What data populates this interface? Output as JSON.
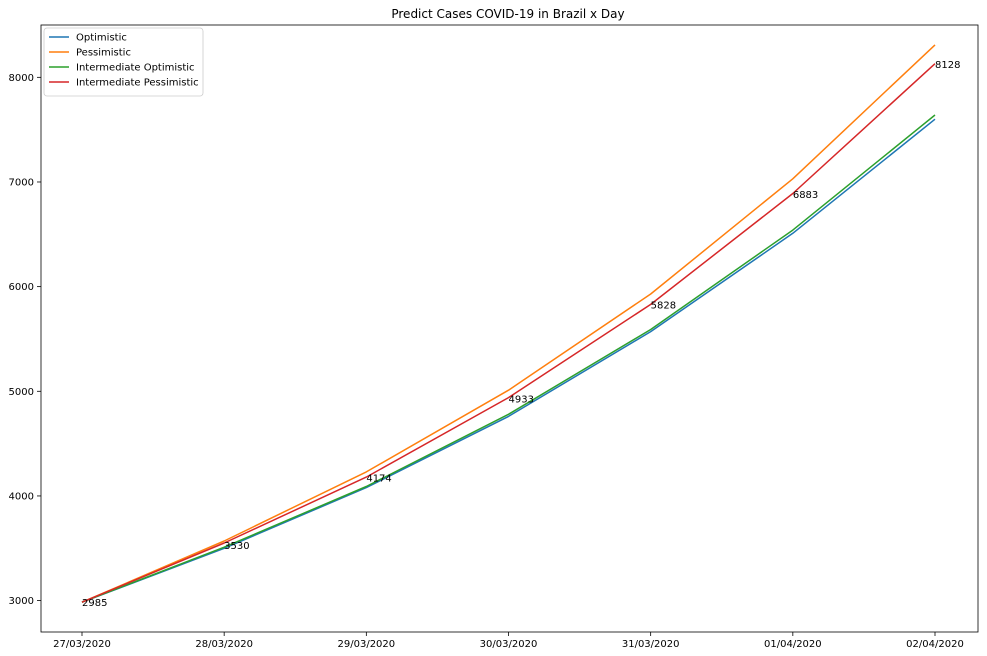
{
  "chart_data": {
    "type": "line",
    "title": "Predict Cases COVID-19 in Brazil x Day",
    "xlabel": "",
    "ylabel": "",
    "categories": [
      "27/03/2020",
      "28/03/2020",
      "29/03/2020",
      "30/03/2020",
      "31/03/2020",
      "01/04/2020",
      "02/04/2020"
    ],
    "ylim": [
      2700,
      8500
    ],
    "yticks": [
      3000,
      4000,
      5000,
      6000,
      7000,
      8000
    ],
    "grid": false,
    "legend_position": "top-left",
    "series": [
      {
        "name": "Optimistic",
        "color": "#1f77b4",
        "values": [
          2985,
          3500,
          4080,
          4760,
          5570,
          6510,
          7600
        ]
      },
      {
        "name": "Pessimistic",
        "color": "#ff7f0e",
        "values": [
          2985,
          3570,
          4230,
          5010,
          5930,
          7030,
          8310
        ]
      },
      {
        "name": "Intermediate Optimistic",
        "color": "#2ca02c",
        "values": [
          2985,
          3510,
          4090,
          4780,
          5590,
          6540,
          7640
        ]
      },
      {
        "name": "Intermediate Pessimistic",
        "color": "#d62728",
        "values": [
          2985,
          3550,
          4180,
          4940,
          5830,
          6890,
          8130
        ]
      }
    ],
    "annotations": [
      {
        "category": "27/03/2020",
        "value": 2985,
        "text": "2985"
      },
      {
        "category": "28/03/2020",
        "value": 3530,
        "text": "3530"
      },
      {
        "category": "29/03/2020",
        "value": 4174,
        "text": "4174"
      },
      {
        "category": "30/03/2020",
        "value": 4933,
        "text": "4933"
      },
      {
        "category": "31/03/2020",
        "value": 5828,
        "text": "5828"
      },
      {
        "category": "01/04/2020",
        "value": 6883,
        "text": "6883"
      },
      {
        "category": "02/04/2020",
        "value": 8128,
        "text": "8128"
      }
    ]
  }
}
